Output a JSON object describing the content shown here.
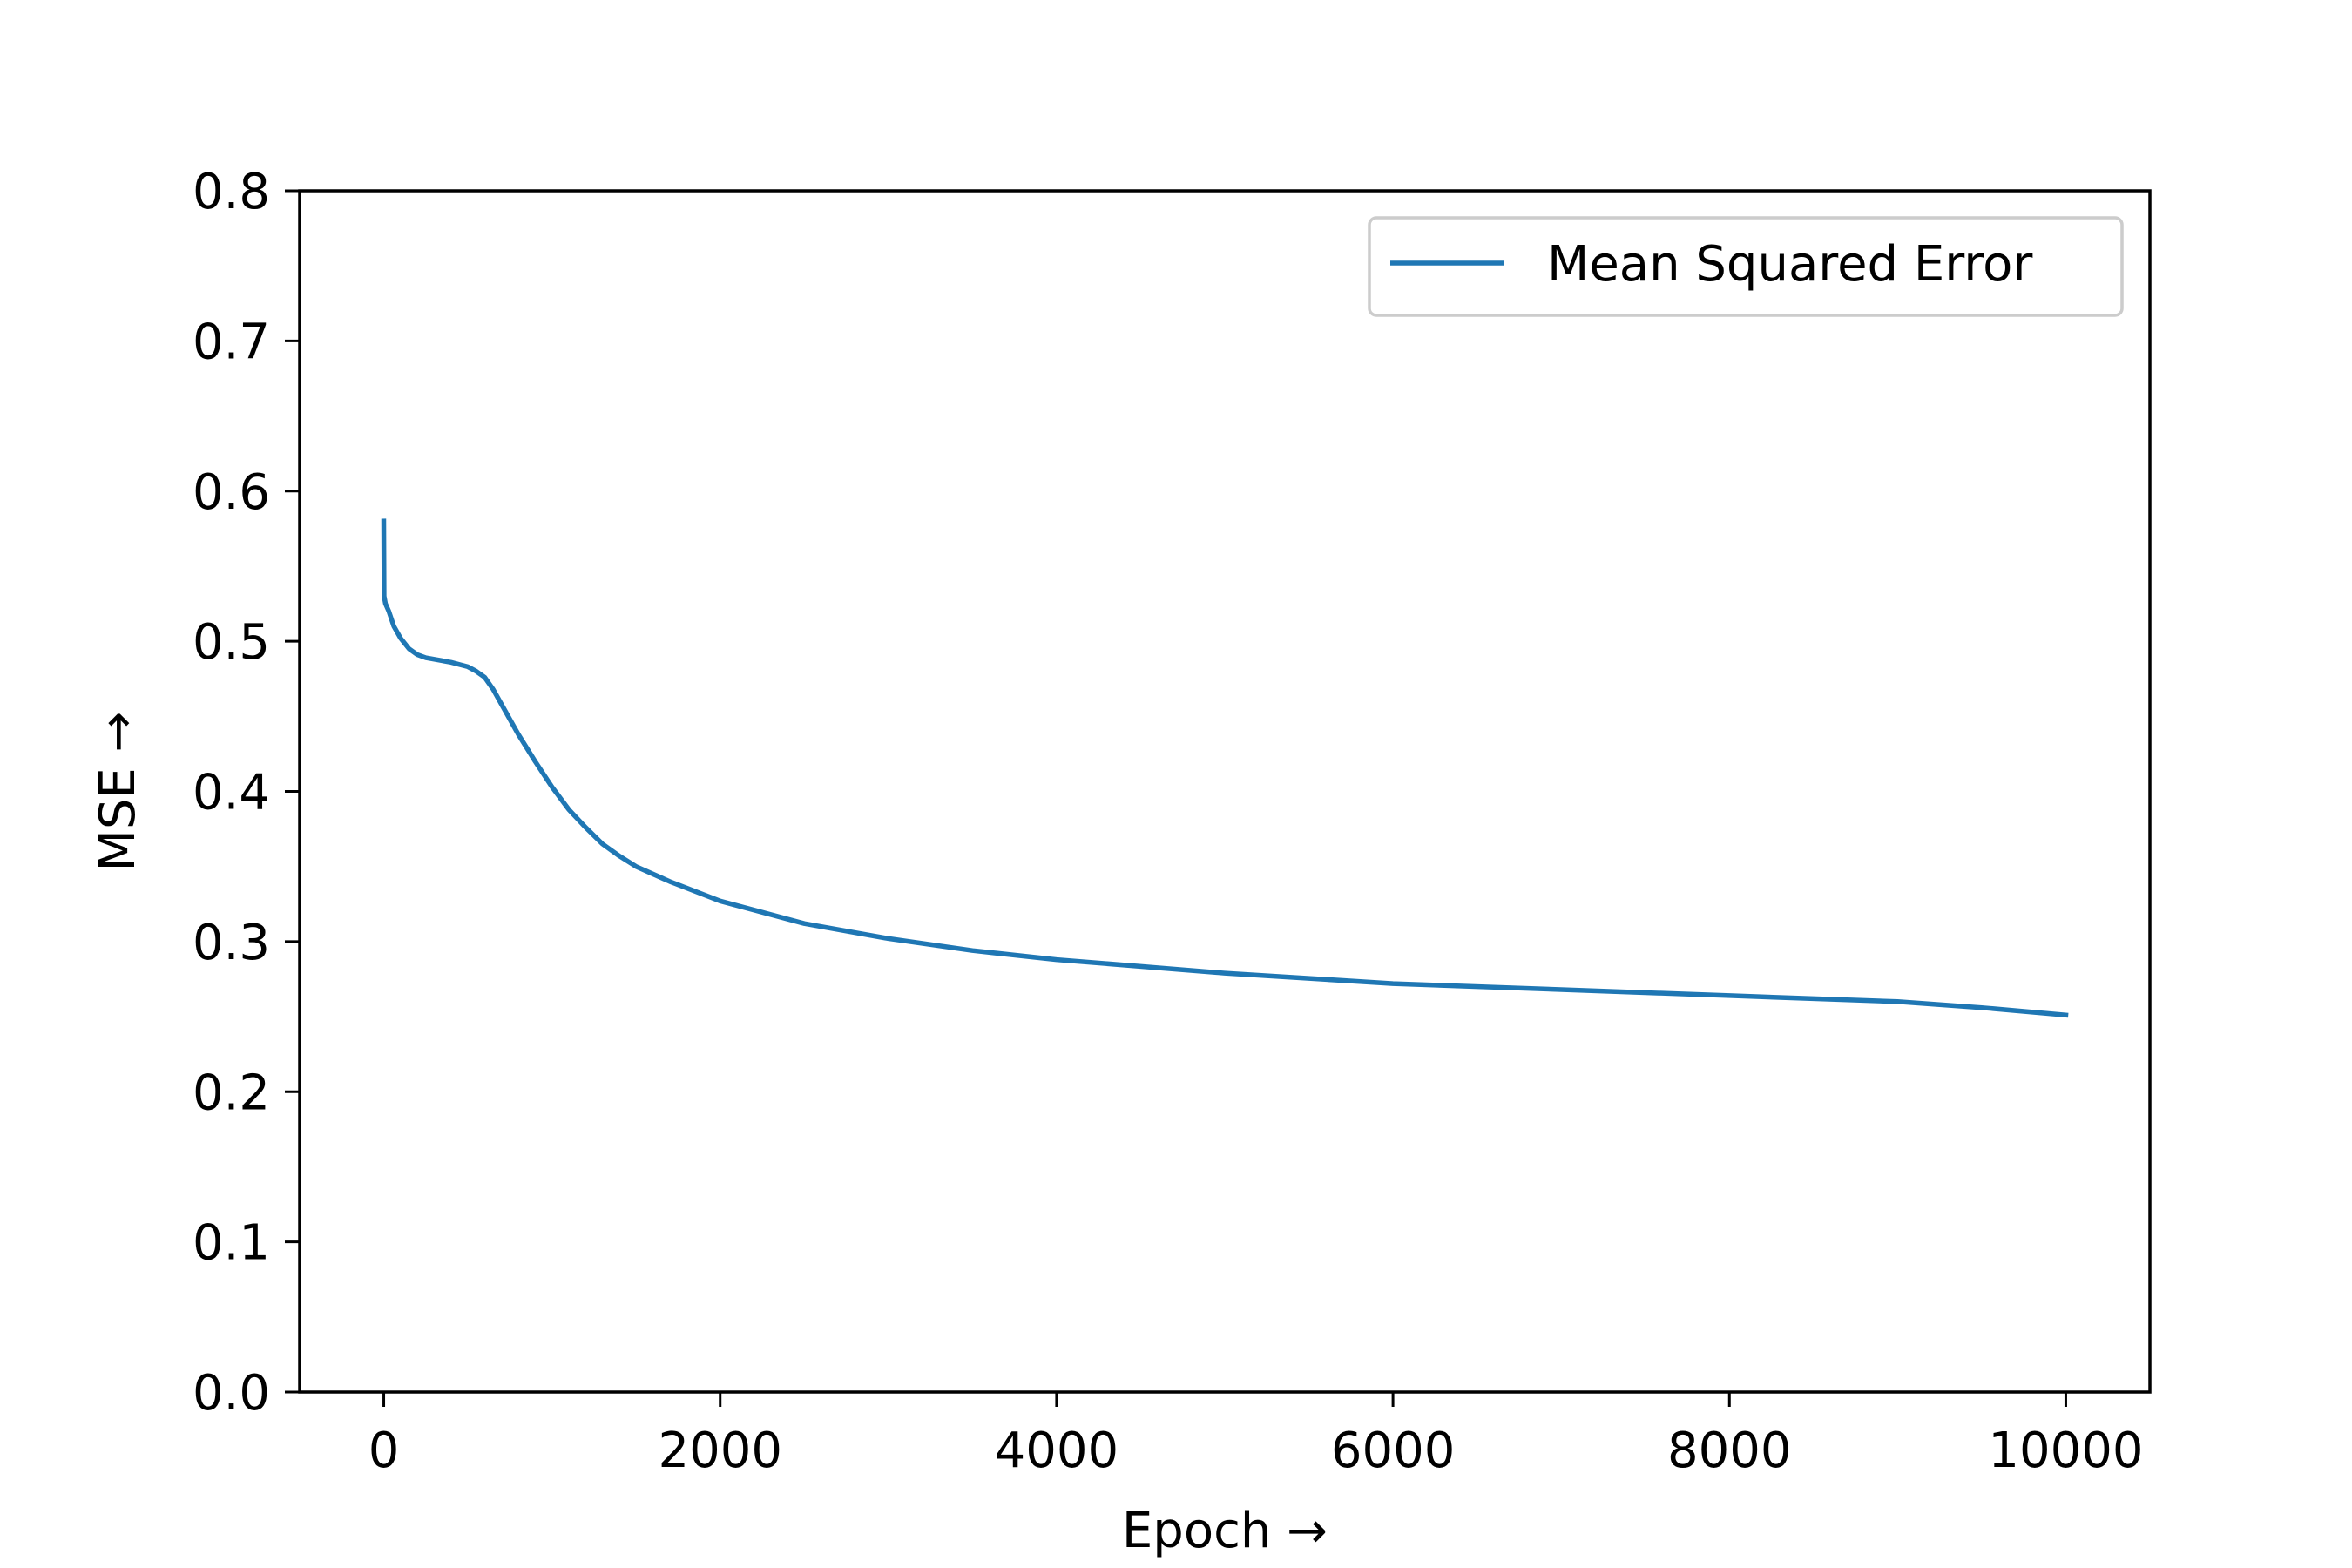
{
  "chart_data": {
    "type": "line",
    "title": "",
    "xlabel": "Epoch  →",
    "ylabel": "MSE  →",
    "xlim": [
      -500,
      10500
    ],
    "ylim": [
      0.0,
      0.8
    ],
    "x_ticks": [
      0,
      2000,
      4000,
      6000,
      8000,
      10000
    ],
    "x_tick_labels": [
      "0",
      "2000",
      "4000",
      "6000",
      "8000",
      "10000"
    ],
    "y_ticks": [
      0.0,
      0.1,
      0.2,
      0.3,
      0.4,
      0.5,
      0.6,
      0.7,
      0.8
    ],
    "y_tick_labels": [
      "0.0",
      "0.1",
      "0.2",
      "0.3",
      "0.4",
      "0.5",
      "0.6",
      "0.7",
      "0.8"
    ],
    "grid": false,
    "legend": {
      "position": "top-right",
      "entries": [
        "Mean Squared Error"
      ]
    },
    "colors": {
      "series": "#1f77b4",
      "axes": "#000000",
      "legend_border": "#cccccc"
    },
    "series": [
      {
        "name": "Mean Squared Error",
        "x": [
          0,
          2,
          10,
          30,
          60,
          100,
          150,
          200,
          250,
          300,
          400,
          500,
          550,
          600,
          650,
          700,
          800,
          900,
          1000,
          1100,
          1200,
          1300,
          1400,
          1500,
          1700,
          2000,
          2500,
          3000,
          3500,
          4000,
          5000,
          6000,
          7000,
          8000,
          8500,
          9000,
          9500,
          10000
        ],
        "y": [
          0.58,
          0.53,
          0.525,
          0.52,
          0.51,
          0.502,
          0.495,
          0.491,
          0.489,
          0.488,
          0.486,
          0.483,
          0.48,
          0.476,
          0.468,
          0.458,
          0.438,
          0.42,
          0.403,
          0.388,
          0.376,
          0.365,
          0.357,
          0.35,
          0.34,
          0.327,
          0.312,
          0.302,
          0.294,
          0.288,
          0.279,
          0.272,
          0.268,
          0.264,
          0.262,
          0.26,
          0.256,
          0.251
        ]
      }
    ]
  }
}
